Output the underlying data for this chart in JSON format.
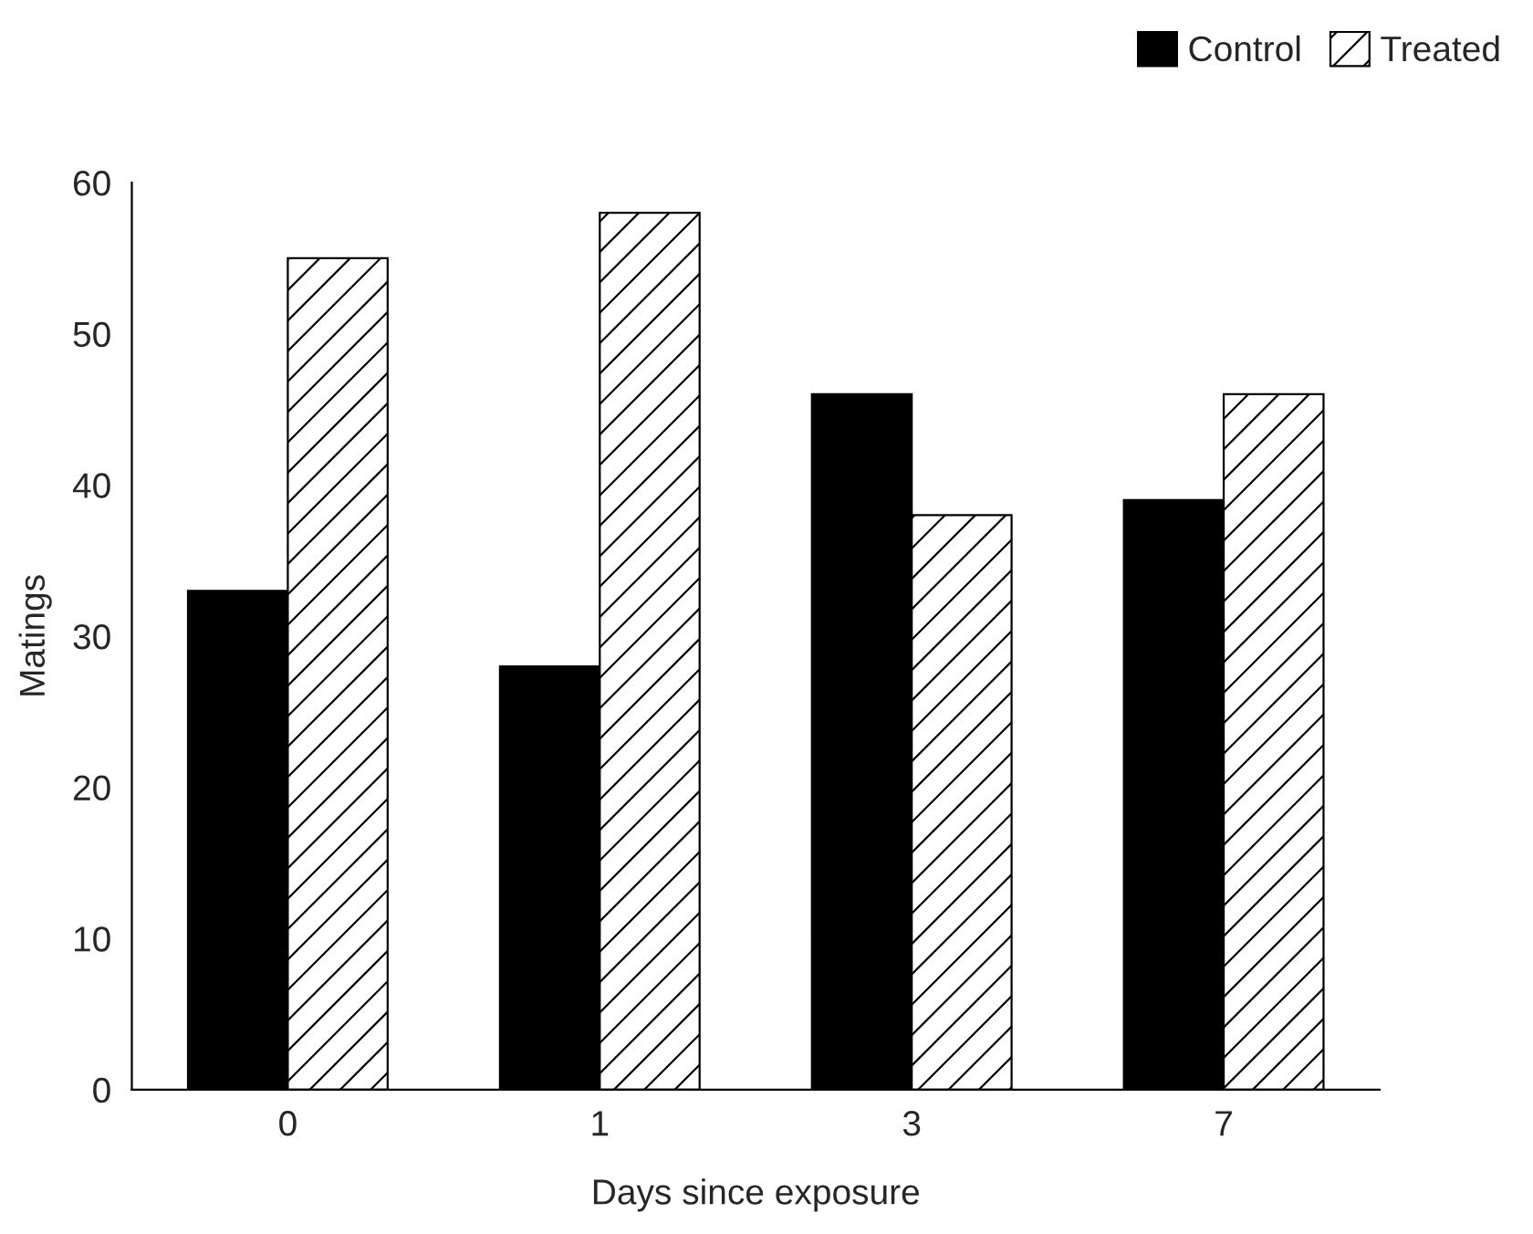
{
  "chart_data": {
    "type": "bar",
    "xlabel": "Days since exposure",
    "ylabel": "Matings",
    "categories": [
      "0",
      "1",
      "3",
      "7"
    ],
    "series": [
      {
        "name": "Control",
        "color": "#000000",
        "values": [
          33,
          28,
          46,
          39
        ]
      },
      {
        "name": "Treated",
        "color": "#000000",
        "values": [
          55,
          58,
          38,
          46
        ]
      }
    ],
    "ylim": [
      0,
      60
    ],
    "yticks": [
      0,
      10,
      20,
      30,
      40,
      50,
      60
    ],
    "grid": false,
    "legend": "top right"
  }
}
